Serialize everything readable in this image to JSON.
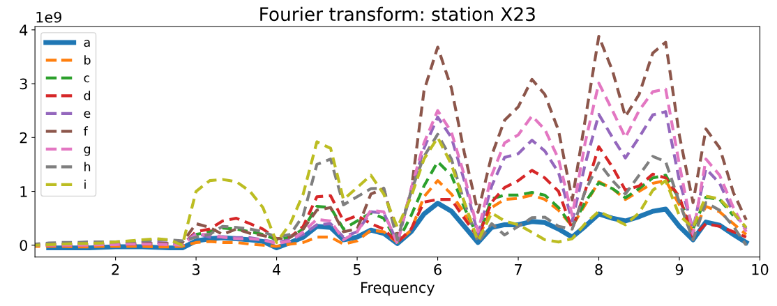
{
  "chart_data": {
    "type": "line",
    "title": "Fourier transform: station X23",
    "xlabel": "Frequency",
    "annotations": [
      "1e9"
    ],
    "x": [
      1.0,
      1.17,
      1.33,
      1.5,
      1.67,
      1.83,
      2.0,
      2.17,
      2.33,
      2.5,
      2.67,
      2.83,
      3.0,
      3.17,
      3.33,
      3.5,
      3.67,
      3.83,
      4.0,
      4.17,
      4.33,
      4.5,
      4.67,
      4.83,
      5.0,
      5.17,
      5.33,
      5.5,
      5.67,
      5.83,
      6.0,
      6.17,
      6.33,
      6.5,
      6.67,
      6.83,
      7.0,
      7.17,
      7.33,
      7.5,
      7.67,
      7.83,
      8.0,
      8.17,
      8.33,
      8.5,
      8.67,
      8.83,
      9.0,
      9.17,
      9.33,
      9.5,
      9.67,
      9.83
    ],
    "xlim": [
      1.0,
      10.0
    ],
    "xticks": [
      2,
      3,
      4,
      5,
      6,
      7,
      8,
      9,
      10
    ],
    "ylim": [
      -0.22,
      4.06
    ],
    "yticks": [
      0,
      1,
      2,
      3,
      4
    ],
    "grid": false,
    "legend": "top left",
    "marker": "none",
    "series": [
      {
        "name": "a",
        "color": "#1f77b4",
        "line_style": "solid",
        "values": [
          null,
          -0.05,
          -0.05,
          -0.05,
          -0.05,
          -0.04,
          -0.03,
          -0.03,
          -0.03,
          -0.04,
          -0.05,
          -0.05,
          0.08,
          0.12,
          0.14,
          0.12,
          0.1,
          0.07,
          -0.05,
          0.05,
          0.15,
          0.35,
          0.33,
          0.1,
          0.15,
          0.28,
          0.22,
          0.03,
          0.25,
          0.58,
          0.78,
          0.63,
          0.35,
          0.05,
          0.33,
          0.38,
          0.38,
          0.44,
          0.42,
          0.3,
          0.15,
          0.35,
          0.58,
          0.5,
          0.45,
          0.53,
          0.63,
          0.67,
          0.35,
          0.1,
          0.43,
          0.37,
          0.2,
          0.05
        ]
      },
      {
        "name": "b",
        "color": "#ff7f0e",
        "line_style": "dashed",
        "values": [
          -0.02,
          -0.02,
          -0.02,
          -0.03,
          -0.03,
          -0.02,
          -0.02,
          -0.02,
          -0.02,
          -0.03,
          -0.03,
          -0.02,
          0.05,
          0.07,
          0.05,
          0.05,
          0.02,
          0.0,
          -0.02,
          0.02,
          0.05,
          0.15,
          0.15,
          0.02,
          0.08,
          0.28,
          0.25,
          0.05,
          0.28,
          0.9,
          1.2,
          0.95,
          0.6,
          0.1,
          0.7,
          0.85,
          0.87,
          0.93,
          0.85,
          0.65,
          0.35,
          0.75,
          1.18,
          1.05,
          0.85,
          1.0,
          1.15,
          1.2,
          0.75,
          0.25,
          0.72,
          0.62,
          0.4,
          0.2
        ]
      },
      {
        "name": "c",
        "color": "#2ca02c",
        "line_style": "dashed",
        "values": [
          null,
          null,
          null,
          null,
          null,
          null,
          null,
          null,
          null,
          null,
          null,
          null,
          0.2,
          0.25,
          0.32,
          0.3,
          0.25,
          0.2,
          0.1,
          0.15,
          0.3,
          0.72,
          0.7,
          0.3,
          0.45,
          0.6,
          0.5,
          0.05,
          0.55,
          1.1,
          1.55,
          1.3,
          0.7,
          0.15,
          0.86,
          0.93,
          0.93,
          0.98,
          0.93,
          0.7,
          0.35,
          0.8,
          1.16,
          1.05,
          0.88,
          1.05,
          1.25,
          1.3,
          0.85,
          0.3,
          0.89,
          0.85,
          0.55,
          null
        ]
      },
      {
        "name": "d",
        "color": "#d62728",
        "line_style": "dashed",
        "values": [
          0.0,
          0.0,
          0.0,
          0.0,
          0.01,
          0.01,
          0.01,
          0.02,
          0.02,
          0.02,
          0.02,
          0.01,
          0.25,
          0.3,
          0.45,
          0.5,
          0.4,
          0.3,
          0.12,
          0.15,
          0.35,
          0.9,
          0.92,
          0.45,
          0.55,
          0.4,
          0.3,
          0.05,
          0.3,
          0.8,
          0.85,
          0.85,
          0.5,
          0.15,
          0.8,
          1.07,
          1.2,
          1.39,
          1.25,
          1.0,
          0.3,
          1.0,
          1.83,
          1.45,
          1.02,
          1.1,
          1.32,
          1.25,
          0.9,
          0.15,
          0.4,
          0.35,
          0.25,
          0.15
        ]
      },
      {
        "name": "e",
        "color": "#9467bd",
        "line_style": "dashed",
        "values": [
          0.02,
          0.02,
          0.02,
          0.02,
          0.02,
          0.03,
          0.03,
          0.04,
          0.05,
          0.05,
          0.04,
          0.02,
          0.22,
          0.15,
          0.15,
          0.14,
          0.14,
          0.1,
          0.05,
          0.1,
          0.2,
          0.38,
          0.4,
          0.15,
          0.25,
          0.62,
          0.6,
          0.05,
          1.0,
          1.8,
          2.38,
          2.0,
          1.2,
          0.2,
          1.1,
          1.63,
          1.7,
          1.95,
          1.75,
          1.35,
          0.45,
          1.5,
          2.43,
          2.0,
          1.62,
          2.0,
          2.42,
          2.48,
          1.2,
          0.3,
          1.42,
          1.15,
          0.6,
          0.3
        ]
      },
      {
        "name": "f",
        "color": "#8c564b",
        "line_style": "dashed",
        "values": [
          0.0,
          0.01,
          0.01,
          0.01,
          0.01,
          0.02,
          0.02,
          0.02,
          0.03,
          0.03,
          0.03,
          0.05,
          0.4,
          0.33,
          0.2,
          0.3,
          0.22,
          0.18,
          0.12,
          0.15,
          0.3,
          0.65,
          0.7,
          0.25,
          0.3,
          0.95,
          1.05,
          0.15,
          1.0,
          2.87,
          3.68,
          2.92,
          1.72,
          0.61,
          1.67,
          2.32,
          2.57,
          3.08,
          2.8,
          2.13,
          0.84,
          2.32,
          3.88,
          3.24,
          2.39,
          2.8,
          3.57,
          3.77,
          2.04,
          0.79,
          2.16,
          1.81,
          0.98,
          0.47
        ]
      },
      {
        "name": "g",
        "color": "#e377c2",
        "line_style": "dashed",
        "values": [
          0.0,
          0.0,
          0.0,
          0.0,
          0.0,
          0.01,
          0.01,
          0.02,
          0.02,
          0.02,
          0.01,
          0.0,
          0.2,
          0.2,
          0.15,
          0.12,
          0.12,
          0.1,
          0.03,
          0.08,
          0.25,
          0.48,
          0.45,
          0.1,
          0.25,
          0.65,
          0.62,
          0.03,
          1.05,
          1.9,
          2.5,
          2.1,
          1.3,
          0.25,
          1.3,
          1.9,
          2.05,
          2.4,
          2.15,
          1.6,
          0.55,
          1.9,
          3.01,
          2.5,
          2.0,
          2.5,
          2.85,
          2.9,
          1.5,
          0.2,
          1.6,
          1.3,
          0.7,
          0.25
        ]
      },
      {
        "name": "h",
        "color": "#7f7f7f",
        "line_style": "dashed",
        "values": [
          0.02,
          0.04,
          0.05,
          0.05,
          0.06,
          0.06,
          0.06,
          0.07,
          0.08,
          0.1,
          0.1,
          0.08,
          0.15,
          0.2,
          0.35,
          0.33,
          0.3,
          0.25,
          0.15,
          0.2,
          0.55,
          1.5,
          1.6,
          0.75,
          0.9,
          1.05,
          1.06,
          0.1,
          1.0,
          1.65,
          2.06,
          1.6,
          0.8,
          0.05,
          0.4,
          0.19,
          0.35,
          0.51,
          0.52,
          0.35,
          0.3,
          1.0,
          1.53,
          1.2,
          0.95,
          1.3,
          1.65,
          1.55,
          0.8,
          0.1,
          0.79,
          0.65,
          0.35,
          0.0
        ]
      },
      {
        "name": "i",
        "color": "#bcbd22",
        "line_style": "dashed",
        "values": [
          0.0,
          0.01,
          0.02,
          0.03,
          0.03,
          0.04,
          0.06,
          0.08,
          0.1,
          0.12,
          0.1,
          0.0,
          1.0,
          1.2,
          1.22,
          1.18,
          1.0,
          0.7,
          0.05,
          0.4,
          0.95,
          1.92,
          1.8,
          0.85,
          1.07,
          1.3,
          0.95,
          0.33,
          0.9,
          1.6,
          2.0,
          1.5,
          0.8,
          0.08,
          0.6,
          0.45,
          0.38,
          0.24,
          0.1,
          0.06,
          0.12,
          0.4,
          0.63,
          0.5,
          0.38,
          0.6,
          1.02,
          1.2,
          0.55,
          0.33,
          0.91,
          0.86,
          0.6,
          0.33
        ]
      }
    ]
  }
}
